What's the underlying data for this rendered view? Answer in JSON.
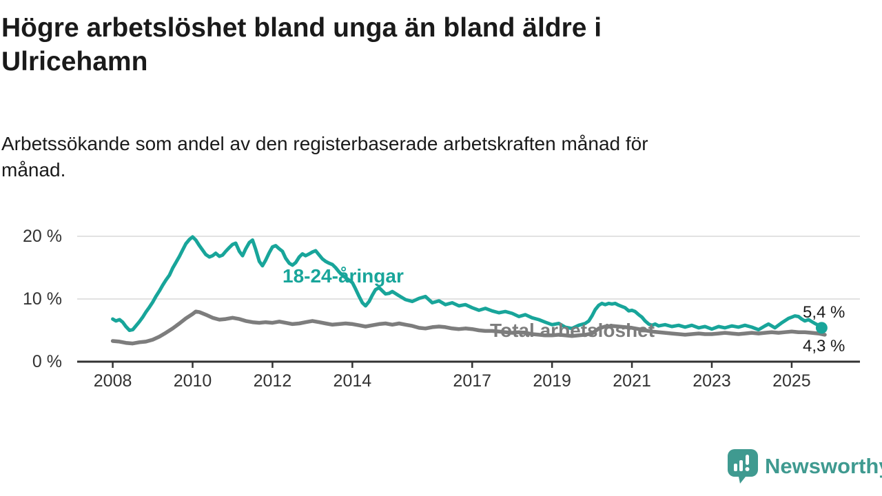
{
  "header": {
    "title_lines": [
      "Högre arbetslöshet bland unga än bland äldre i",
      "Ulricehamn"
    ],
    "subtitle_lines": [
      "Arbetssökande som andel av den registerbaserade arbetskraften månad för",
      "månad."
    ]
  },
  "chart_data": {
    "type": "line",
    "title": "Högre arbetslöshet bland unga än bland äldre i Ulricehamn",
    "subtitle": "Arbetssökande som andel av den registerbaserade arbetskraften månad för månad.",
    "unit": "%",
    "grid": "horizontal",
    "legend_position": "inline-annotations",
    "xlim": [
      2007.1,
      2026.7
    ],
    "ylim": [
      0,
      21.5
    ],
    "x_ticks": [
      2008,
      2010,
      2012,
      2014,
      2017,
      2019,
      2021,
      2023,
      2025
    ],
    "y_ticks": [
      {
        "value": 0,
        "label": "0 %"
      },
      {
        "value": 10,
        "label": "10 %"
      },
      {
        "value": 20,
        "label": "20 %"
      }
    ],
    "series": [
      {
        "name": "Total arbetslöshet",
        "color": "#7d7d7d",
        "end_label": "4,3 %",
        "end_value": 4.3,
        "points": [
          [
            2008.0,
            3.3
          ],
          [
            2008.17,
            3.2
          ],
          [
            2008.33,
            3.0
          ],
          [
            2008.5,
            2.9
          ],
          [
            2008.67,
            3.1
          ],
          [
            2008.83,
            3.2
          ],
          [
            2009.0,
            3.5
          ],
          [
            2009.17,
            4.0
          ],
          [
            2009.33,
            4.6
          ],
          [
            2009.5,
            5.3
          ],
          [
            2009.67,
            6.1
          ],
          [
            2009.83,
            6.9
          ],
          [
            2010.0,
            7.6
          ],
          [
            2010.08,
            8.0
          ],
          [
            2010.17,
            7.9
          ],
          [
            2010.33,
            7.5
          ],
          [
            2010.5,
            7.0
          ],
          [
            2010.67,
            6.7
          ],
          [
            2010.83,
            6.8
          ],
          [
            2011.0,
            7.0
          ],
          [
            2011.17,
            6.8
          ],
          [
            2011.33,
            6.5
          ],
          [
            2011.5,
            6.3
          ],
          [
            2011.67,
            6.2
          ],
          [
            2011.83,
            6.3
          ],
          [
            2012.0,
            6.2
          ],
          [
            2012.17,
            6.4
          ],
          [
            2012.33,
            6.2
          ],
          [
            2012.5,
            6.0
          ],
          [
            2012.67,
            6.1
          ],
          [
            2012.83,
            6.3
          ],
          [
            2013.0,
            6.5
          ],
          [
            2013.17,
            6.3
          ],
          [
            2013.33,
            6.1
          ],
          [
            2013.5,
            5.9
          ],
          [
            2013.67,
            6.0
          ],
          [
            2013.83,
            6.1
          ],
          [
            2014.0,
            6.0
          ],
          [
            2014.17,
            5.8
          ],
          [
            2014.33,
            5.6
          ],
          [
            2014.5,
            5.8
          ],
          [
            2014.67,
            6.0
          ],
          [
            2014.83,
            6.1
          ],
          [
            2015.0,
            5.9
          ],
          [
            2015.17,
            6.1
          ],
          [
            2015.33,
            5.9
          ],
          [
            2015.5,
            5.7
          ],
          [
            2015.67,
            5.4
          ],
          [
            2015.83,
            5.3
          ],
          [
            2016.0,
            5.5
          ],
          [
            2016.17,
            5.6
          ],
          [
            2016.33,
            5.5
          ],
          [
            2016.5,
            5.3
          ],
          [
            2016.67,
            5.2
          ],
          [
            2016.83,
            5.3
          ],
          [
            2017.0,
            5.2
          ],
          [
            2017.17,
            5.0
          ],
          [
            2017.33,
            4.9
          ],
          [
            2017.5,
            4.9
          ],
          [
            2017.67,
            4.8
          ],
          [
            2017.83,
            4.7
          ],
          [
            2018.0,
            4.6
          ],
          [
            2018.17,
            4.7
          ],
          [
            2018.33,
            4.6
          ],
          [
            2018.5,
            4.4
          ],
          [
            2018.67,
            4.3
          ],
          [
            2018.83,
            4.2
          ],
          [
            2019.0,
            4.2
          ],
          [
            2019.17,
            4.3
          ],
          [
            2019.33,
            4.2
          ],
          [
            2019.5,
            4.1
          ],
          [
            2019.67,
            4.2
          ],
          [
            2019.83,
            4.3
          ],
          [
            2020.0,
            4.5
          ],
          [
            2020.17,
            5.3
          ],
          [
            2020.33,
            5.6
          ],
          [
            2020.5,
            5.7
          ],
          [
            2020.67,
            5.6
          ],
          [
            2020.83,
            5.5
          ],
          [
            2021.0,
            5.4
          ],
          [
            2021.17,
            5.2
          ],
          [
            2021.33,
            5.0
          ],
          [
            2021.5,
            4.8
          ],
          [
            2021.67,
            4.7
          ],
          [
            2021.83,
            4.6
          ],
          [
            2022.0,
            4.5
          ],
          [
            2022.17,
            4.4
          ],
          [
            2022.33,
            4.3
          ],
          [
            2022.5,
            4.4
          ],
          [
            2022.67,
            4.5
          ],
          [
            2022.83,
            4.4
          ],
          [
            2023.0,
            4.4
          ],
          [
            2023.17,
            4.5
          ],
          [
            2023.33,
            4.6
          ],
          [
            2023.5,
            4.5
          ],
          [
            2023.67,
            4.4
          ],
          [
            2023.83,
            4.5
          ],
          [
            2024.0,
            4.6
          ],
          [
            2024.17,
            4.5
          ],
          [
            2024.33,
            4.6
          ],
          [
            2024.5,
            4.7
          ],
          [
            2024.67,
            4.6
          ],
          [
            2024.83,
            4.7
          ],
          [
            2025.0,
            4.8
          ],
          [
            2025.17,
            4.7
          ],
          [
            2025.33,
            4.7
          ],
          [
            2025.5,
            4.6
          ],
          [
            2025.67,
            4.5
          ],
          [
            2025.83,
            4.3
          ]
        ]
      },
      {
        "name": "18-24-åringar",
        "color": "#18a59a",
        "end_label": "5,4 %",
        "end_value": 5.4,
        "end_dot": true,
        "points": [
          [
            2008.0,
            6.8
          ],
          [
            2008.08,
            6.5
          ],
          [
            2008.17,
            6.7
          ],
          [
            2008.25,
            6.3
          ],
          [
            2008.33,
            5.6
          ],
          [
            2008.42,
            5.0
          ],
          [
            2008.5,
            5.1
          ],
          [
            2008.58,
            5.7
          ],
          [
            2008.67,
            6.4
          ],
          [
            2008.75,
            7.1
          ],
          [
            2008.83,
            7.9
          ],
          [
            2008.92,
            8.7
          ],
          [
            2009.0,
            9.5
          ],
          [
            2009.08,
            10.4
          ],
          [
            2009.17,
            11.3
          ],
          [
            2009.25,
            12.2
          ],
          [
            2009.33,
            13.0
          ],
          [
            2009.42,
            13.8
          ],
          [
            2009.5,
            14.9
          ],
          [
            2009.58,
            15.8
          ],
          [
            2009.67,
            16.8
          ],
          [
            2009.75,
            17.8
          ],
          [
            2009.83,
            18.8
          ],
          [
            2009.92,
            19.5
          ],
          [
            2010.0,
            19.9
          ],
          [
            2010.08,
            19.4
          ],
          [
            2010.17,
            18.5
          ],
          [
            2010.25,
            17.8
          ],
          [
            2010.33,
            17.1
          ],
          [
            2010.42,
            16.7
          ],
          [
            2010.5,
            16.9
          ],
          [
            2010.58,
            17.3
          ],
          [
            2010.67,
            16.8
          ],
          [
            2010.75,
            17.0
          ],
          [
            2010.83,
            17.6
          ],
          [
            2010.92,
            18.2
          ],
          [
            2011.0,
            18.7
          ],
          [
            2011.08,
            18.9
          ],
          [
            2011.17,
            17.6
          ],
          [
            2011.25,
            16.9
          ],
          [
            2011.33,
            18.0
          ],
          [
            2011.42,
            19.0
          ],
          [
            2011.5,
            19.4
          ],
          [
            2011.58,
            17.9
          ],
          [
            2011.67,
            16.0
          ],
          [
            2011.75,
            15.3
          ],
          [
            2011.83,
            16.2
          ],
          [
            2011.92,
            17.4
          ],
          [
            2012.0,
            18.3
          ],
          [
            2012.08,
            18.5
          ],
          [
            2012.17,
            18.0
          ],
          [
            2012.25,
            17.6
          ],
          [
            2012.33,
            16.5
          ],
          [
            2012.42,
            15.7
          ],
          [
            2012.5,
            15.4
          ],
          [
            2012.58,
            15.8
          ],
          [
            2012.67,
            16.7
          ],
          [
            2012.75,
            17.2
          ],
          [
            2012.83,
            16.9
          ],
          [
            2012.92,
            17.2
          ],
          [
            2013.0,
            17.5
          ],
          [
            2013.08,
            17.7
          ],
          [
            2013.17,
            17.0
          ],
          [
            2013.25,
            16.4
          ],
          [
            2013.33,
            16.0
          ],
          [
            2013.42,
            15.7
          ],
          [
            2013.5,
            15.5
          ],
          [
            2013.58,
            15.0
          ],
          [
            2013.67,
            14.3
          ],
          [
            2013.75,
            13.8
          ],
          [
            2013.83,
            13.4
          ],
          [
            2013.92,
            13.0
          ],
          [
            2014.0,
            12.6
          ],
          [
            2014.08,
            11.6
          ],
          [
            2014.17,
            10.4
          ],
          [
            2014.25,
            9.4
          ],
          [
            2014.33,
            8.9
          ],
          [
            2014.42,
            9.6
          ],
          [
            2014.5,
            10.6
          ],
          [
            2014.58,
            11.5
          ],
          [
            2014.67,
            11.8
          ],
          [
            2014.75,
            11.3
          ],
          [
            2014.83,
            10.8
          ],
          [
            2014.92,
            10.9
          ],
          [
            2015.0,
            11.2
          ],
          [
            2015.17,
            10.5
          ],
          [
            2015.33,
            9.9
          ],
          [
            2015.5,
            9.6
          ],
          [
            2015.67,
            10.1
          ],
          [
            2015.83,
            10.4
          ],
          [
            2016.0,
            9.4
          ],
          [
            2016.17,
            9.7
          ],
          [
            2016.33,
            9.1
          ],
          [
            2016.5,
            9.4
          ],
          [
            2016.67,
            8.9
          ],
          [
            2016.83,
            9.1
          ],
          [
            2017.0,
            8.6
          ],
          [
            2017.17,
            8.2
          ],
          [
            2017.33,
            8.5
          ],
          [
            2017.5,
            8.1
          ],
          [
            2017.67,
            7.8
          ],
          [
            2017.83,
            8.0
          ],
          [
            2018.0,
            7.7
          ],
          [
            2018.17,
            7.2
          ],
          [
            2018.33,
            7.5
          ],
          [
            2018.5,
            7.0
          ],
          [
            2018.67,
            6.7
          ],
          [
            2018.83,
            6.3
          ],
          [
            2019.0,
            5.9
          ],
          [
            2019.17,
            6.1
          ],
          [
            2019.33,
            5.5
          ],
          [
            2019.5,
            5.3
          ],
          [
            2019.67,
            5.8
          ],
          [
            2019.83,
            6.1
          ],
          [
            2019.92,
            6.5
          ],
          [
            2020.0,
            7.3
          ],
          [
            2020.08,
            8.3
          ],
          [
            2020.17,
            9.0
          ],
          [
            2020.25,
            9.3
          ],
          [
            2020.33,
            9.1
          ],
          [
            2020.42,
            9.3
          ],
          [
            2020.5,
            9.2
          ],
          [
            2020.58,
            9.3
          ],
          [
            2020.67,
            9.0
          ],
          [
            2020.75,
            8.8
          ],
          [
            2020.83,
            8.6
          ],
          [
            2020.92,
            8.1
          ],
          [
            2021.0,
            8.2
          ],
          [
            2021.08,
            8.0
          ],
          [
            2021.17,
            7.5
          ],
          [
            2021.25,
            7.1
          ],
          [
            2021.33,
            6.5
          ],
          [
            2021.42,
            6.0
          ],
          [
            2021.5,
            5.8
          ],
          [
            2021.58,
            6.0
          ],
          [
            2021.67,
            5.7
          ],
          [
            2021.83,
            5.9
          ],
          [
            2022.0,
            5.6
          ],
          [
            2022.17,
            5.8
          ],
          [
            2022.33,
            5.5
          ],
          [
            2022.5,
            5.8
          ],
          [
            2022.67,
            5.4
          ],
          [
            2022.83,
            5.6
          ],
          [
            2023.0,
            5.2
          ],
          [
            2023.17,
            5.6
          ],
          [
            2023.33,
            5.4
          ],
          [
            2023.5,
            5.7
          ],
          [
            2023.67,
            5.5
          ],
          [
            2023.83,
            5.8
          ],
          [
            2024.0,
            5.5
          ],
          [
            2024.17,
            5.1
          ],
          [
            2024.33,
            5.7
          ],
          [
            2024.42,
            6.0
          ],
          [
            2024.58,
            5.4
          ],
          [
            2024.75,
            6.2
          ],
          [
            2024.92,
            6.9
          ],
          [
            2025.0,
            7.1
          ],
          [
            2025.08,
            7.3
          ],
          [
            2025.17,
            7.2
          ],
          [
            2025.25,
            6.8
          ],
          [
            2025.33,
            6.5
          ],
          [
            2025.42,
            6.7
          ],
          [
            2025.5,
            6.4
          ],
          [
            2025.58,
            6.1
          ],
          [
            2025.67,
            5.8
          ],
          [
            2025.75,
            5.4
          ]
        ]
      }
    ]
  },
  "footer": {
    "brand": "Newsworthy"
  },
  "colors": {
    "young_line": "#18a59a",
    "total_line": "#7d7d7d",
    "grid": "#d9d9d9",
    "axis": "#333333",
    "text": "#1a1a1a",
    "logo": "#3f9a90"
  }
}
